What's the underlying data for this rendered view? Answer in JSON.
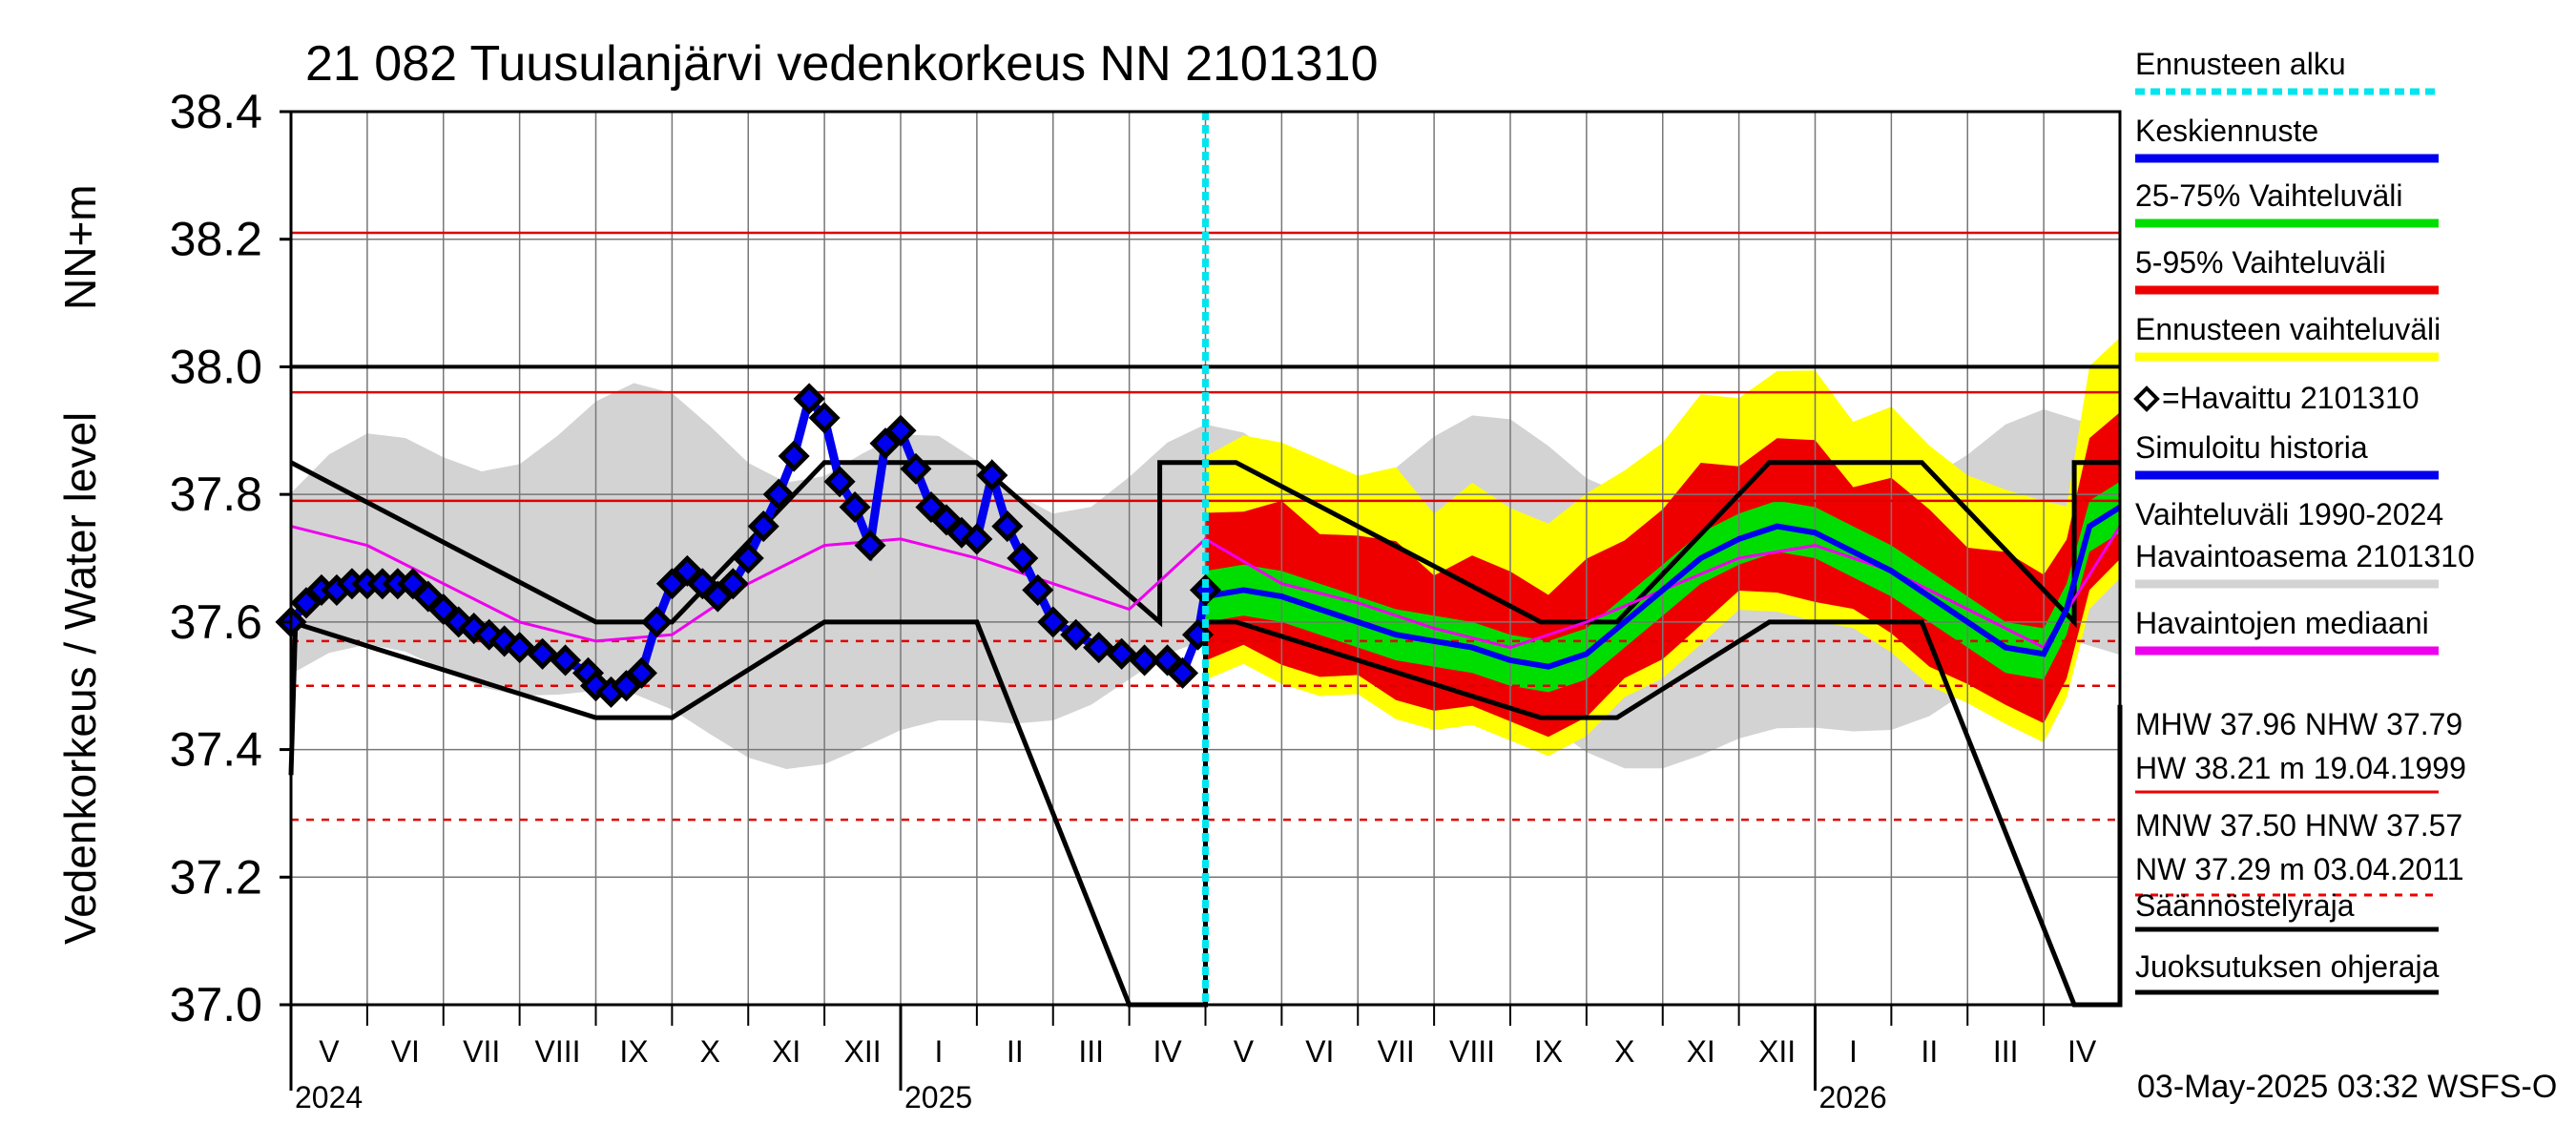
{
  "chart_data": {
    "type": "line",
    "title": "21 082 Tuusulanjärvi vedenkorkeus NN 2101310",
    "ylabel_main": "Vedenkorkeus / Water level",
    "ylabel_unit": "NN+m",
    "ylim": [
      37.0,
      38.4
    ],
    "yticks": [
      "37.0",
      "37.2",
      "37.4",
      "37.6",
      "37.8",
      "38.0",
      "38.2",
      "38.4"
    ],
    "x_months": [
      "V",
      "VI",
      "VII",
      "VIII",
      "IX",
      "X",
      "XI",
      "XII",
      "I",
      "II",
      "III",
      "IV",
      "V",
      "VI",
      "VII",
      "VIII",
      "IX",
      "X",
      "XI",
      "XII",
      "I",
      "II",
      "III",
      "IV"
    ],
    "x_years": [
      "2024",
      "2025",
      "2026"
    ],
    "forecast_start": "2025-05-03",
    "reference_lines": [
      {
        "name": "HW",
        "value": 38.21,
        "style": "solid",
        "color": "#e00000"
      },
      {
        "name": "MHW",
        "value": 37.96,
        "style": "solid",
        "color": "#e00000"
      },
      {
        "name": "NHW",
        "value": 37.79,
        "style": "solid",
        "color": "#e00000"
      },
      {
        "name": "HNW",
        "value": 37.57,
        "style": "dashed",
        "color": "#e00000"
      },
      {
        "name": "MNW",
        "value": 37.5,
        "style": "dashed",
        "color": "#e00000"
      },
      {
        "name": "NW",
        "value": 37.29,
        "style": "dashed",
        "color": "#e00000"
      },
      {
        "name": "black-38",
        "value": 38.0,
        "style": "solid",
        "color": "#000000"
      }
    ],
    "series": [
      {
        "name": "Havaittu 2101310",
        "color": "#000000",
        "x": [
          0,
          0.2,
          0.4,
          0.6,
          0.8,
          1.0,
          1.2,
          1.4,
          1.6,
          1.8,
          2.0,
          2.2,
          2.4,
          2.6,
          2.8,
          3.0,
          3.3,
          3.6,
          3.9,
          4.0,
          4.2,
          4.4,
          4.6,
          4.8,
          5.0,
          5.2,
          5.4,
          5.6,
          5.8,
          6.0,
          6.2,
          6.4,
          6.6,
          6.8,
          7.0,
          7.2,
          7.4,
          7.6,
          7.8,
          8.0,
          8.2,
          8.4,
          8.6,
          8.8,
          9.0,
          9.2,
          9.4,
          9.6,
          9.8,
          10.0,
          10.3,
          10.6,
          10.9,
          11.2,
          11.5,
          11.7,
          11.9,
          12.0
        ],
        "values": [
          37.6,
          37.63,
          37.65,
          37.65,
          37.66,
          37.66,
          37.66,
          37.66,
          37.66,
          37.64,
          37.62,
          37.6,
          37.59,
          37.58,
          37.57,
          37.56,
          37.55,
          37.54,
          37.52,
          37.5,
          37.49,
          37.5,
          37.52,
          37.6,
          37.66,
          37.68,
          37.66,
          37.64,
          37.66,
          37.7,
          37.75,
          37.8,
          37.86,
          37.95,
          37.92,
          37.82,
          37.78,
          37.72,
          37.88,
          37.9,
          37.84,
          37.78,
          37.76,
          37.74,
          37.73,
          37.83,
          37.75,
          37.7,
          37.65,
          37.6,
          37.58,
          37.56,
          37.55,
          37.54,
          37.54,
          37.52,
          37.58,
          37.65
        ]
      },
      {
        "name": "Keskiennuste",
        "color": "#0000ee",
        "x": [
          12.0,
          12.5,
          13.0,
          13.5,
          14.0,
          14.5,
          15.0,
          15.5,
          16.0,
          16.5,
          17.0,
          17.5,
          18.0,
          18.5,
          19.0,
          19.5,
          20.0,
          20.5,
          21.0,
          21.5,
          22.0,
          22.5,
          23.0,
          23.3,
          23.6,
          24.0
        ],
        "values": [
          37.64,
          37.65,
          37.64,
          37.62,
          37.6,
          37.58,
          37.57,
          37.56,
          37.54,
          37.53,
          37.55,
          37.6,
          37.65,
          37.7,
          37.73,
          37.75,
          37.74,
          37.71,
          37.68,
          37.64,
          37.6,
          37.56,
          37.55,
          37.62,
          37.75,
          37.78
        ]
      },
      {
        "name": "Havaintojen mediaani",
        "color": "#ee00ee",
        "x": [
          0,
          1,
          2,
          3,
          4,
          5,
          6,
          7,
          8,
          9,
          10,
          11,
          12,
          13,
          14,
          15,
          16,
          17,
          18,
          19,
          20,
          21,
          22,
          23,
          24
        ],
        "values": [
          37.75,
          37.72,
          37.66,
          37.6,
          37.57,
          37.58,
          37.66,
          37.72,
          37.73,
          37.7,
          37.66,
          37.62,
          37.73,
          37.66,
          37.63,
          37.59,
          37.56,
          37.6,
          37.65,
          37.7,
          37.72,
          37.68,
          37.62,
          37.56,
          37.75
        ]
      }
    ],
    "legend": [
      {
        "label": "Ennusteen alku",
        "color": "#00e5ee",
        "style": "dotted"
      },
      {
        "label": "Keskiennuste",
        "color": "#0000ee",
        "style": "solid"
      },
      {
        "label": "25-75% Vaihteluväli",
        "color": "#00dd00",
        "style": "solid"
      },
      {
        "label": "5-95% Vaihteluväli",
        "color": "#ee0000",
        "style": "solid"
      },
      {
        "label": "Ennusteen vaihteluväli",
        "color": "#ffff00",
        "style": "solid"
      },
      {
        "label": "=Havaittu 2101310",
        "color": "#000000",
        "style": "marker"
      },
      {
        "label": "Simuloitu historia",
        "color": "#0000ee",
        "style": "solid"
      },
      {
        "label": "Vaihteluväli 1990-2024",
        "color": "#d3d3d3",
        "style": "solid"
      },
      {
        "label": " Havaintoasema 2101310",
        "color": "#d3d3d3",
        "style": "none"
      },
      {
        "label": "Havaintojen mediaani",
        "color": "#ee00ee",
        "style": "solid"
      },
      {
        "label": "MHW  37.96 NHW  37.79",
        "color": "#ee0000",
        "style": "none"
      },
      {
        "label": "HW  38.21 m 19.04.1999",
        "color": "#ee0000",
        "style": "solid"
      },
      {
        "label": "MNW  37.50 HNW  37.57",
        "color": "#ee0000",
        "style": "none"
      },
      {
        "label": "NW  37.29 m 03.04.2011",
        "color": "#ee0000",
        "style": "dashed"
      },
      {
        "label": "Säännöstelyraja",
        "color": "#000000",
        "style": "solid"
      },
      {
        "label": "Juoksutuksen ohjeraja",
        "color": "#000000",
        "style": "solid"
      }
    ],
    "footer": "03-May-2025 03:32 WSFS-O"
  }
}
